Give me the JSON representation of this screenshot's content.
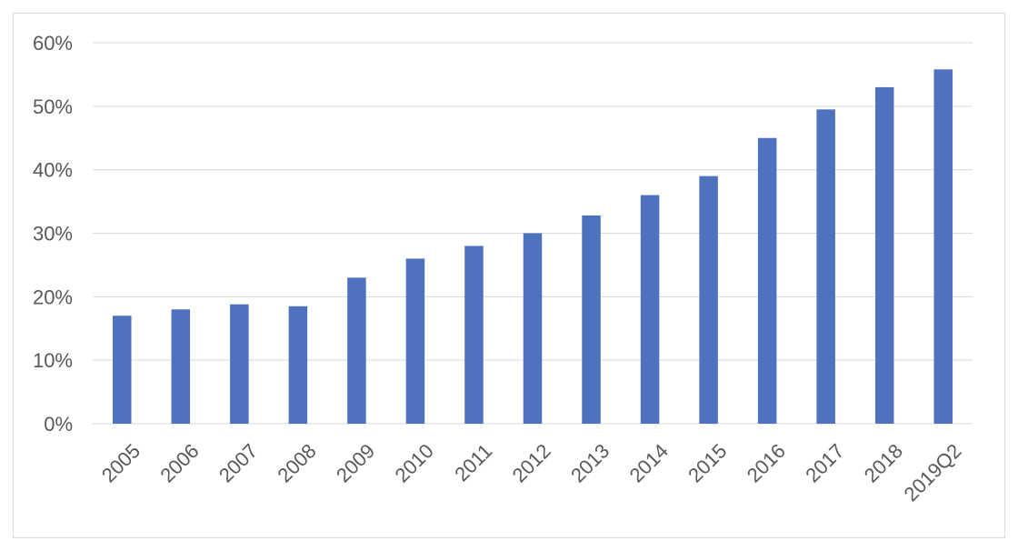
{
  "chart_data": {
    "type": "bar",
    "title": "",
    "xlabel": "",
    "ylabel": "",
    "categories": [
      "2005",
      "2006",
      "2007",
      "2008",
      "2009",
      "2010",
      "2011",
      "2012",
      "2013",
      "2014",
      "2015",
      "2016",
      "2017",
      "2018",
      "2019Q2"
    ],
    "series": [
      {
        "values": [
          17,
          18,
          18.8,
          18.5,
          23,
          26,
          28,
          30,
          32.8,
          36,
          39,
          45,
          49.5,
          53,
          55.8
        ]
      }
    ],
    "ylim": [
      0,
      60
    ],
    "yticks": [
      0,
      10,
      20,
      30,
      40,
      50,
      60
    ],
    "ytick_labels": [
      "0%",
      "10%",
      "20%",
      "30%",
      "40%",
      "50%",
      "60%"
    ],
    "grid": true,
    "legend": "none",
    "bar_color": "#4F72BE"
  }
}
